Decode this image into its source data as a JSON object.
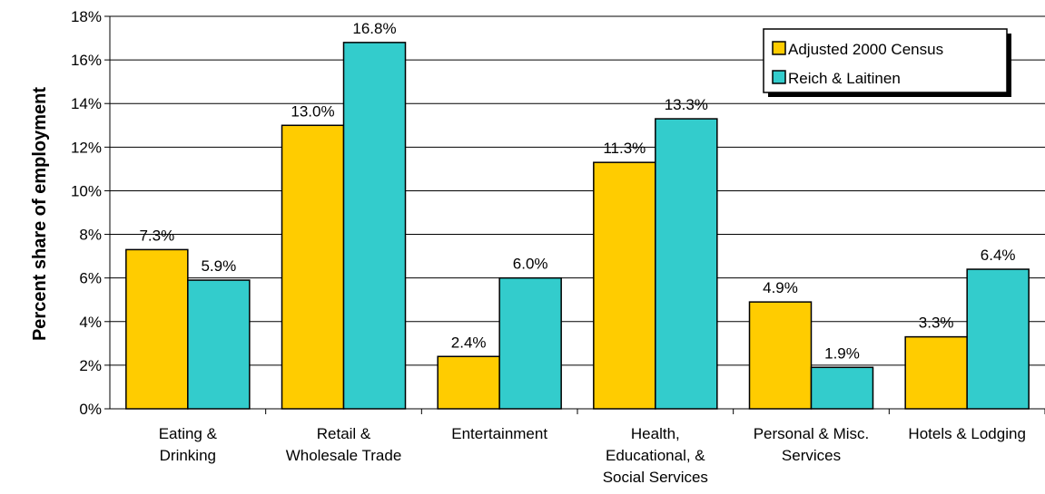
{
  "chart_data": {
    "type": "bar",
    "ylabel": "Percent share of employment",
    "ylim": [
      0,
      18
    ],
    "yticks": [
      "0%",
      "2%",
      "4%",
      "6%",
      "8%",
      "10%",
      "12%",
      "14%",
      "16%",
      "18%"
    ],
    "grid": true,
    "legend_position": "top-right",
    "categories": [
      [
        "Eating &",
        "Drinking"
      ],
      [
        "Retail &",
        "Wholesale Trade"
      ],
      [
        "Entertainment"
      ],
      [
        "Health,",
        "Educational, &",
        "Social Services"
      ],
      [
        "Personal & Misc.",
        "Services"
      ],
      [
        "Hotels & Lodging"
      ]
    ],
    "series": [
      {
        "name": "Adjusted 2000 Census",
        "color": "#FFCC00",
        "values": [
          7.3,
          13.0,
          2.4,
          11.3,
          4.9,
          3.3
        ],
        "labels": [
          "7.3%",
          "13.0%",
          "2.4%",
          "11.3%",
          "4.9%",
          "3.3%"
        ]
      },
      {
        "name": "Reich & Laitinen",
        "color": "#33CCCC",
        "values": [
          5.9,
          16.8,
          6.0,
          13.3,
          1.9,
          6.4
        ],
        "labels": [
          "5.9%",
          "16.8%",
          "6.0%",
          "13.3%",
          "1.9%",
          "6.4%"
        ]
      }
    ]
  }
}
